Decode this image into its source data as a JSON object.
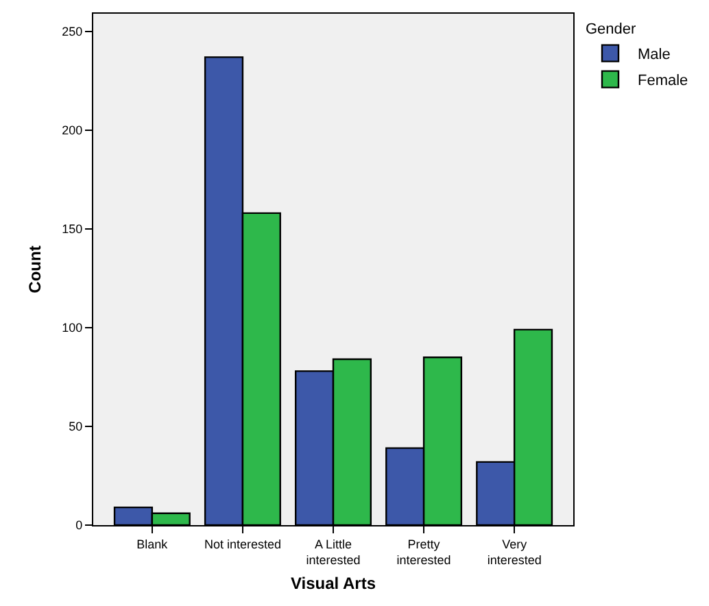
{
  "chart_data": {
    "type": "bar",
    "xlabel": "Visual Arts",
    "ylabel": "Count",
    "legend_title": "Gender",
    "categories": [
      "Blank",
      "Not interested",
      "A Little interested",
      "Pretty interested",
      "Very interested"
    ],
    "series": [
      {
        "name": "Male",
        "color": "#3d58a9",
        "values": [
          9,
          237,
          78,
          39,
          32
        ]
      },
      {
        "name": "Female",
        "color": "#2eb84b",
        "values": [
          6,
          158,
          84,
          85,
          99
        ]
      }
    ],
    "ylim": [
      0,
      259
    ],
    "yticks": [
      0,
      50,
      100,
      150,
      200,
      250
    ],
    "grid": false,
    "legend": "top right"
  }
}
